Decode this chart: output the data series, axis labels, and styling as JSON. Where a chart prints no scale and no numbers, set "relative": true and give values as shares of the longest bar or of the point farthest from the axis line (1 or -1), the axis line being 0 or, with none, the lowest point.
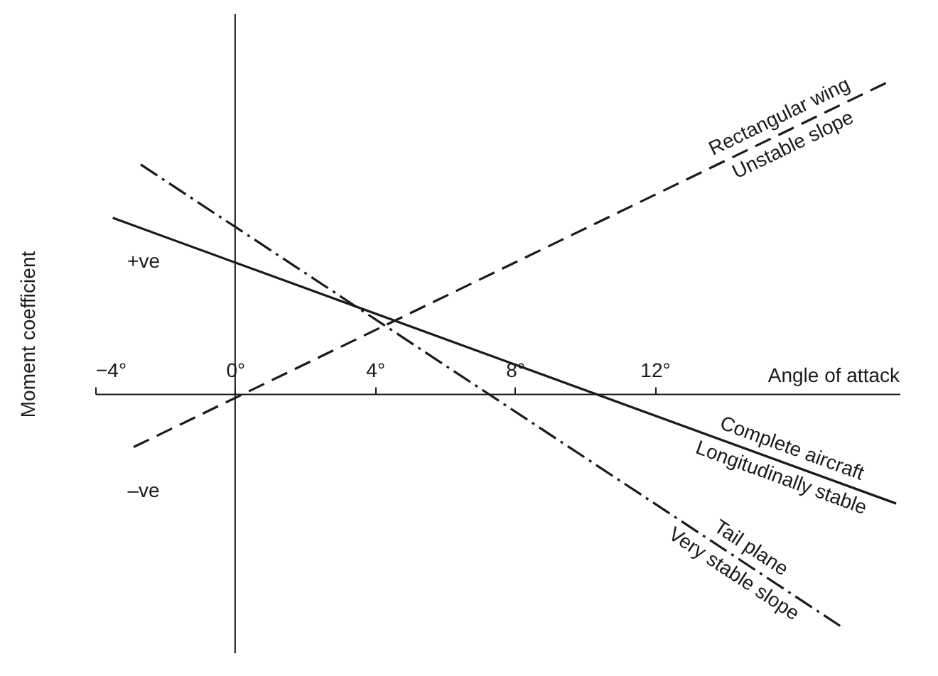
{
  "chart_data": {
    "type": "line",
    "relative": true,
    "xlabel": "Angle of attack",
    "ylabel": "Moment coefficient",
    "xlim": [
      -4,
      19
    ],
    "xticks": [
      {
        "value": -4,
        "label": "−4°"
      },
      {
        "value": 0,
        "label": "0°"
      },
      {
        "value": 4,
        "label": "4°"
      },
      {
        "value": 8,
        "label": "8°"
      },
      {
        "value": 12,
        "label": "12°"
      }
    ],
    "series": [
      {
        "name": "Complete aircraft",
        "color": "#1a1a1a",
        "line_style": "solid",
        "x": [
          -3.5,
          18.9
        ],
        "values": [
          0.56,
          -0.35
        ]
      },
      {
        "name": "Tail plane",
        "color": "#1a1a1a",
        "line_style": "dotted",
        "x": [
          -2.7,
          17.3
        ],
        "values": [
          0.73,
          -0.74
        ]
      },
      {
        "name": "Rectangular wing",
        "color": "#1a1a1a",
        "line_style": "dashed",
        "x": [
          -2.9,
          18.8
        ],
        "values": [
          -0.17,
          1
        ]
      }
    ],
    "annotations": [
      "Longitudinally stable",
      "Very stable slope",
      "Unstable slope",
      "+ve",
      "–ve"
    ]
  }
}
